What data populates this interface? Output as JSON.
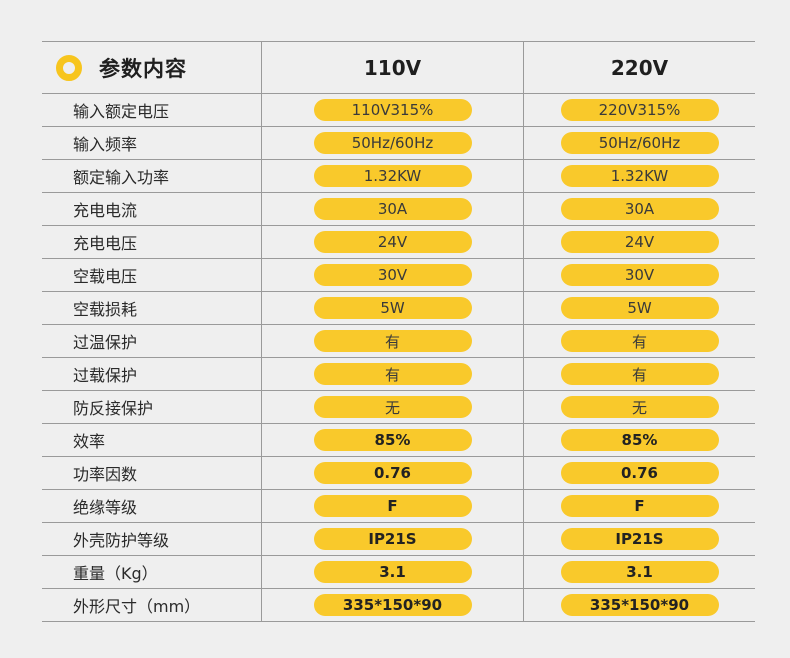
{
  "header": {
    "title": "参数内容",
    "col1": "110V",
    "col2": "220V"
  },
  "rows": [
    {
      "label": "输入额定电压",
      "v1": "110V315%",
      "v2": "220V315%"
    },
    {
      "label": "输入频率",
      "v1": "50Hz/60Hz",
      "v2": "50Hz/60Hz"
    },
    {
      "label": "额定输入功率",
      "v1": "1.32KW",
      "v2": "1.32KW"
    },
    {
      "label": "充电电流",
      "v1": "30A",
      "v2": "30A"
    },
    {
      "label": "充电电压",
      "v1": "24V",
      "v2": "24V"
    },
    {
      "label": "空载电压",
      "v1": "30V",
      "v2": "30V"
    },
    {
      "label": "空载损耗",
      "v1": "5W",
      "v2": "5W"
    },
    {
      "label": "过温保护",
      "v1": "有",
      "v2": "有"
    },
    {
      "label": "过载保护",
      "v1": "有",
      "v2": "有"
    },
    {
      "label": "防反接保护",
      "v1": "无",
      "v2": "无"
    },
    {
      "label": "效率",
      "v1": "85%",
      "v2": "85%"
    },
    {
      "label": "功率因数",
      "v1": "0.76",
      "v2": "0.76"
    },
    {
      "label": "绝缘等级",
      "v1": "F",
      "v2": "F"
    },
    {
      "label": "外壳防护等级",
      "v1": "IP21S",
      "v2": "IP21S"
    },
    {
      "label": "重量（Kg）",
      "v1": "3.1",
      "v2": "3.1"
    },
    {
      "label": "外形尺寸（mm）",
      "v1": "335*150*90",
      "v2": "335*150*90"
    }
  ],
  "colors": {
    "accent": "#f9c92b",
    "background": "#efefef",
    "grid": "#9a9a9a"
  }
}
